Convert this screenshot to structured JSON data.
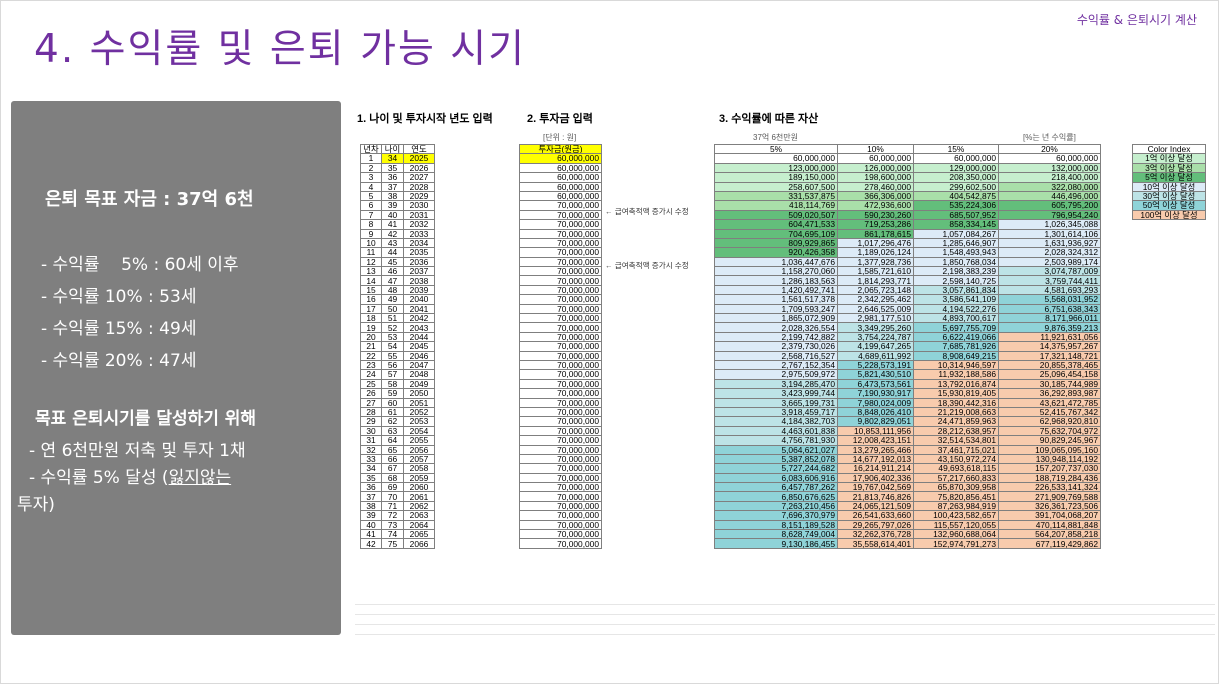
{
  "header": {
    "note": "수익률 & 은퇴시기 계산",
    "title": "4. 수익률 및 은퇴 가능 시기"
  },
  "summary": {
    "goal": "은퇴 목표 자금 : 37억 6천",
    "rates": [
      "- 수익률    5% : 60세 이후",
      "- 수익률 10% : 53세",
      "- 수익률 15% : 49세",
      "- 수익률 20% : 47세"
    ],
    "aim_title": "목표 은퇴시기를 달성하기 위해",
    "tip1": "- 연 6천만원 저축 및 투자 1채",
    "tip2_pre": "- 수익률 5% 달성 (",
    "tip2_u": "잃지않는",
    "tip2_post": "투자)"
  },
  "sheet": {
    "sec1": "1. 나이 및 투자시작 년도 입력",
    "sec2": "2. 투자금 입력",
    "sec3": "3. 수익률에 따른 자산",
    "unit": "[단위 : 원]",
    "target": "37억 6천만원",
    "rate_note": "[%는 년 수익률]",
    "age_headers": [
      "년차",
      "나이",
      "연도"
    ],
    "inv_header": "투자금(원금)",
    "rate_headers": [
      "5%",
      "10%",
      "15%",
      "20%"
    ],
    "note_text": "← 급여축적액 증가시 수정",
    "legend_title": "Color Index",
    "legend": [
      {
        "label": "1억 이상 달성",
        "color": "#c6efce"
      },
      {
        "label": "3억 이상 달성",
        "color": "#a9dfa9"
      },
      {
        "label": "5억 이상 달성",
        "color": "#63be7b"
      },
      {
        "label": "10억 이상 달성",
        "color": "#ddebf7"
      },
      {
        "label": "30억 이상 달성",
        "color": "#bde3e6"
      },
      {
        "label": "50억 이상 달성",
        "color": "#8fd3d8"
      },
      {
        "label": "100억 이상 달성",
        "color": "#f8cbad"
      }
    ]
  },
  "rows": [
    [
      "1",
      "34",
      "2025",
      "60,000,000",
      "60,000,000",
      "60,000,000",
      "60,000,000",
      "60,000,000"
    ],
    [
      "2",
      "35",
      "2026",
      "60,000,000",
      "123,000,000",
      "126,000,000",
      "129,000,000",
      "132,000,000"
    ],
    [
      "3",
      "36",
      "2027",
      "60,000,000",
      "189,150,000",
      "198,600,000",
      "208,350,000",
      "218,400,000"
    ],
    [
      "4",
      "37",
      "2028",
      "60,000,000",
      "258,607,500",
      "278,460,000",
      "299,602,500",
      "322,080,000"
    ],
    [
      "5",
      "38",
      "2029",
      "60,000,000",
      "331,537,875",
      "366,306,000",
      "404,542,875",
      "446,496,000"
    ],
    [
      "6",
      "39",
      "2030",
      "70,000,000",
      "418,114,769",
      "472,936,600",
      "535,224,306",
      "605,795,200"
    ],
    [
      "7",
      "40",
      "2031",
      "70,000,000",
      "509,020,507",
      "590,230,260",
      "685,507,952",
      "796,954,240"
    ],
    [
      "8",
      "41",
      "2032",
      "70,000,000",
      "604,471,533",
      "719,253,286",
      "858,334,145",
      "1,026,345,088"
    ],
    [
      "9",
      "42",
      "2033",
      "70,000,000",
      "704,695,109",
      "861,178,615",
      "1,057,084,267",
      "1,301,614,106"
    ],
    [
      "10",
      "43",
      "2034",
      "70,000,000",
      "809,929,865",
      "1,017,296,476",
      "1,285,646,907",
      "1,631,936,927"
    ],
    [
      "11",
      "44",
      "2035",
      "70,000,000",
      "920,426,358",
      "1,189,026,124",
      "1,548,493,943",
      "2,028,324,312"
    ],
    [
      "12",
      "45",
      "2036",
      "70,000,000",
      "1,036,447,676",
      "1,377,928,736",
      "1,850,768,034",
      "2,503,989,174"
    ],
    [
      "13",
      "46",
      "2037",
      "70,000,000",
      "1,158,270,060",
      "1,585,721,610",
      "2,198,383,239",
      "3,074,787,009"
    ],
    [
      "14",
      "47",
      "2038",
      "70,000,000",
      "1,286,183,563",
      "1,814,293,771",
      "2,598,140,725",
      "3,759,744,411"
    ],
    [
      "15",
      "48",
      "2039",
      "70,000,000",
      "1,420,492,741",
      "2,065,723,148",
      "3,057,861,834",
      "4,581,693,293"
    ],
    [
      "16",
      "49",
      "2040",
      "70,000,000",
      "1,561,517,378",
      "2,342,295,462",
      "3,586,541,109",
      "5,568,031,952"
    ],
    [
      "17",
      "50",
      "2041",
      "70,000,000",
      "1,709,593,247",
      "2,646,525,009",
      "4,194,522,276",
      "6,751,638,343"
    ],
    [
      "18",
      "51",
      "2042",
      "70,000,000",
      "1,865,072,909",
      "2,981,177,510",
      "4,893,700,617",
      "8,171,966,011"
    ],
    [
      "19",
      "52",
      "2043",
      "70,000,000",
      "2,028,326,554",
      "3,349,295,260",
      "5,697,755,709",
      "9,876,359,213"
    ],
    [
      "20",
      "53",
      "2044",
      "70,000,000",
      "2,199,742,882",
      "3,754,224,787",
      "6,622,419,066",
      "11,921,631,056"
    ],
    [
      "21",
      "54",
      "2045",
      "70,000,000",
      "2,379,730,026",
      "4,199,647,265",
      "7,685,781,926",
      "14,375,957,267"
    ],
    [
      "22",
      "55",
      "2046",
      "70,000,000",
      "2,568,716,527",
      "4,689,611,992",
      "8,908,649,215",
      "17,321,148,721"
    ],
    [
      "23",
      "56",
      "2047",
      "70,000,000",
      "2,767,152,354",
      "5,228,573,191",
      "10,314,946,597",
      "20,855,378,465"
    ],
    [
      "24",
      "57",
      "2048",
      "70,000,000",
      "2,975,509,972",
      "5,821,430,510",
      "11,932,188,586",
      "25,096,454,158"
    ],
    [
      "25",
      "58",
      "2049",
      "70,000,000",
      "3,194,285,470",
      "6,473,573,561",
      "13,792,016,874",
      "30,185,744,989"
    ],
    [
      "26",
      "59",
      "2050",
      "70,000,000",
      "3,423,999,744",
      "7,190,930,917",
      "15,930,819,405",
      "36,292,893,987"
    ],
    [
      "27",
      "60",
      "2051",
      "70,000,000",
      "3,665,199,731",
      "7,980,024,009",
      "18,390,442,316",
      "43,621,472,785"
    ],
    [
      "28",
      "61",
      "2052",
      "70,000,000",
      "3,918,459,717",
      "8,848,026,410",
      "21,219,008,663",
      "52,415,767,342"
    ],
    [
      "29",
      "62",
      "2053",
      "70,000,000",
      "4,184,382,703",
      "9,802,829,051",
      "24,471,859,963",
      "62,968,920,810"
    ],
    [
      "30",
      "63",
      "2054",
      "70,000,000",
      "4,463,601,838",
      "10,853,111,956",
      "28,212,638,957",
      "75,632,704,972"
    ],
    [
      "31",
      "64",
      "2055",
      "70,000,000",
      "4,756,781,930",
      "12,008,423,151",
      "32,514,534,801",
      "90,829,245,967"
    ],
    [
      "32",
      "65",
      "2056",
      "70,000,000",
      "5,064,621,027",
      "13,279,265,466",
      "37,461,715,021",
      "109,065,095,160"
    ],
    [
      "33",
      "66",
      "2057",
      "70,000,000",
      "5,387,852,078",
      "14,677,192,013",
      "43,150,972,274",
      "130,948,114,192"
    ],
    [
      "34",
      "67",
      "2058",
      "70,000,000",
      "5,727,244,682",
      "16,214,911,214",
      "49,693,618,115",
      "157,207,737,030"
    ],
    [
      "35",
      "68",
      "2059",
      "70,000,000",
      "6,083,606,916",
      "17,906,402,336",
      "57,217,660,833",
      "188,719,284,436"
    ],
    [
      "36",
      "69",
      "2060",
      "70,000,000",
      "6,457,787,262",
      "19,767,042,569",
      "65,870,309,958",
      "226,533,141,324"
    ],
    [
      "37",
      "70",
      "2061",
      "70,000,000",
      "6,850,676,625",
      "21,813,746,826",
      "75,820,856,451",
      "271,909,769,588"
    ],
    [
      "38",
      "71",
      "2062",
      "70,000,000",
      "7,263,210,456",
      "24,065,121,509",
      "87,263,984,919",
      "326,361,723,506"
    ],
    [
      "39",
      "72",
      "2063",
      "70,000,000",
      "7,696,370,979",
      "26,541,633,660",
      "100,423,582,657",
      "391,704,068,207"
    ],
    [
      "40",
      "73",
      "2064",
      "70,000,000",
      "8,151,189,528",
      "29,265,797,026",
      "115,557,120,055",
      "470,114,881,848"
    ],
    [
      "41",
      "74",
      "2065",
      "70,000,000",
      "8,628,749,004",
      "32,262,376,728",
      "132,960,688,064",
      "564,207,858,218"
    ],
    [
      "42",
      "75",
      "2066",
      "70,000,000",
      "9,130,186,455",
      "35,558,614,401",
      "152,974,791,273",
      "677,119,429,862"
    ]
  ]
}
